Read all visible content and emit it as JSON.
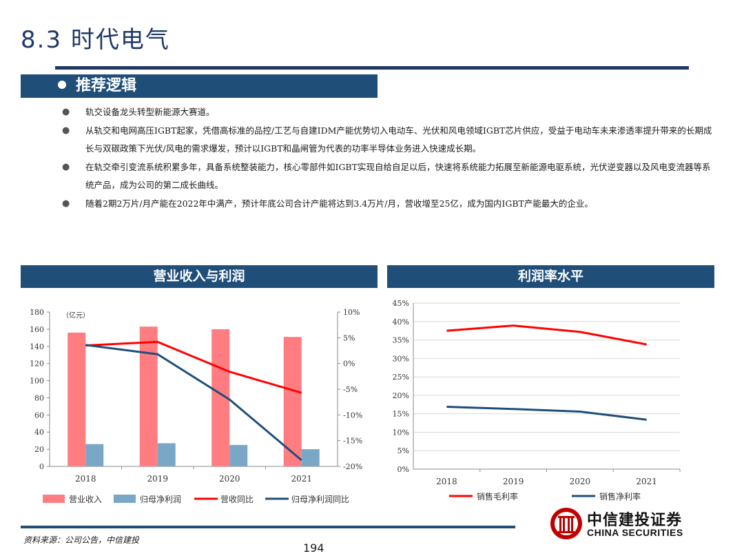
{
  "header": {
    "title": "8.3 时代电气"
  },
  "section": {
    "title": "推荐逻辑"
  },
  "bullets": [
    "轨交设备龙头转型新能源大赛道。",
    "从轨交和电网高压IGBT起家，凭借高标准的品控/工艺与自建IDM产能优势切入电动车、光伏和风电领域IGBT芯片供应，受益于电动车未来渗透率提升带来的长期成长与双碳政策下光伏/风电的需求爆发，预计以IGBT和晶闸管为代表的功率半导体业务进入快速成长期。",
    "在轨交牵引变流系统积累多年，具备系统整装能力，核心零部件如IGBT实现自给自足以后，快速将系统能力拓展至新能源电驱系统，光伏逆变器以及风电变流器等系统产品，成为公司的第二成长曲线。",
    "随着2期2万片/月产能在2022年中满产，预计年底公司合计产能将达到3.4万片/月，营收增至25亿，成为国内IGBT产能最大的企业。"
  ],
  "colors": {
    "navy": "#1f4e79",
    "revenue_bar": "#ff7c80",
    "profit_bar": "#7ba7c7",
    "red_line": "#ff0000",
    "blue_line": "#1f4e79"
  },
  "chart_data": [
    {
      "type": "bar",
      "title": "营业收入与利润",
      "unit_note": "（亿元）",
      "categories": [
        "2018",
        "2019",
        "2020",
        "2021"
      ],
      "ylim": [
        0,
        180
      ],
      "y_ticks": [
        "0",
        "20",
        "40",
        "60",
        "80",
        "100",
        "120",
        "140",
        "160",
        "180"
      ],
      "y2lim": [
        -20,
        10
      ],
      "y2_ticks": [
        "-20%",
        "-15%",
        "-10%",
        "-5%",
        "0%",
        "5%",
        "10%"
      ],
      "series": [
        {
          "name": "营业收入",
          "kind": "bar",
          "axis": "left",
          "values": [
            156,
            163,
            160,
            151
          ]
        },
        {
          "name": "归母净利润",
          "kind": "bar",
          "axis": "left",
          "values": [
            26,
            27,
            25,
            20
          ]
        },
        {
          "name": "营收同比",
          "kind": "line",
          "axis": "right",
          "values": [
            3.5,
            4.2,
            -1.6,
            -5.7
          ]
        },
        {
          "name": "归母净利润同比",
          "kind": "line",
          "axis": "right",
          "values": [
            3.6,
            1.8,
            -7,
            -18.8
          ]
        }
      ],
      "legend": "bottom"
    },
    {
      "type": "line",
      "title": "利润率水平",
      "categories": [
        "2018",
        "2019",
        "2020",
        "2021"
      ],
      "ylim": [
        0,
        45
      ],
      "y_ticks": [
        "0%",
        "5%",
        "10%",
        "15%",
        "20%",
        "25%",
        "30%",
        "35%",
        "40%",
        "45%"
      ],
      "series": [
        {
          "name": "销售毛利率",
          "values": [
            37.5,
            38.9,
            37.2,
            33.8
          ]
        },
        {
          "name": "销售净利率",
          "values": [
            16.9,
            16.3,
            15.6,
            13.4
          ]
        }
      ],
      "legend": "bottom"
    }
  ],
  "footer": {
    "source": "资料来源：公司公告，中信建投",
    "page": "194"
  },
  "logo": {
    "cn": "中信建投证券",
    "en": "CHINA SECURITIES"
  }
}
